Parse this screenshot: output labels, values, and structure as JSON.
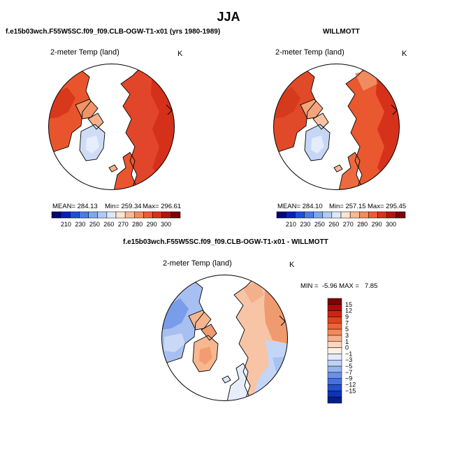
{
  "header": {
    "title": "JJA"
  },
  "panels": {
    "model": {
      "title": "f.e15b03wch.F55W5SC.f09_f09.CLB-OGW-T1-x01 (yrs 1980-1989)",
      "variable": "2-meter Temp (land)",
      "unit": "K",
      "mean": "MEAN= 284.13",
      "min": "Min= 259.34",
      "max": "Max= 296.61"
    },
    "obs": {
      "title": "WILLMOTT",
      "variable": "2-meter Temp (land)",
      "unit": "K",
      "mean": "MEAN= 284.10",
      "min": "Min= 257.15",
      "max": "Max= 295.45"
    },
    "diff": {
      "title": "f.e15b03wch.F55W5SC.f09_f09.CLB-OGW-T1-x01 - WILLMOTT",
      "variable": "2-meter Temp (land)",
      "unit": "K",
      "minmax": "MIN =  -5.96 MAX =   7.85"
    }
  },
  "colorbar_abs": {
    "ticks": [
      "210",
      "230",
      "250",
      "260",
      "270",
      "280",
      "290",
      "300"
    ],
    "colors": [
      "#06067a",
      "#0a1fb8",
      "#1f4fd8",
      "#4a7be8",
      "#7fa6f0",
      "#b2c9f6",
      "#dde7fb",
      "#fde3d0",
      "#f9b893",
      "#f58a5e",
      "#ee5b33",
      "#d8331a",
      "#b0170d",
      "#7a0505"
    ]
  },
  "colorbar_diff": {
    "ticks": [
      "15",
      "12",
      "9",
      "7",
      "5",
      "3",
      "1",
      "0",
      "−1",
      "−3",
      "−5",
      "−7",
      "−9",
      "−12",
      "−15"
    ],
    "colors": [
      "#7a0505",
      "#a80d0a",
      "#cc2414",
      "#e2421f",
      "#ef6432",
      "#f48a5a",
      "#f7b08a",
      "#fbd7bf",
      "#fdf0e5",
      "#e3ecfb",
      "#bfd2f6",
      "#95b3ef",
      "#6b90e6",
      "#4571dd",
      "#2250d0",
      "#0f33b4",
      "#061d8c"
    ]
  },
  "colors": {
    "land_warm": "#e8552d",
    "land_hot": "#d8331a",
    "land_mild": "#f28a5d",
    "ice": "#ffffff",
    "greenland": "#cfdcf6"
  }
}
